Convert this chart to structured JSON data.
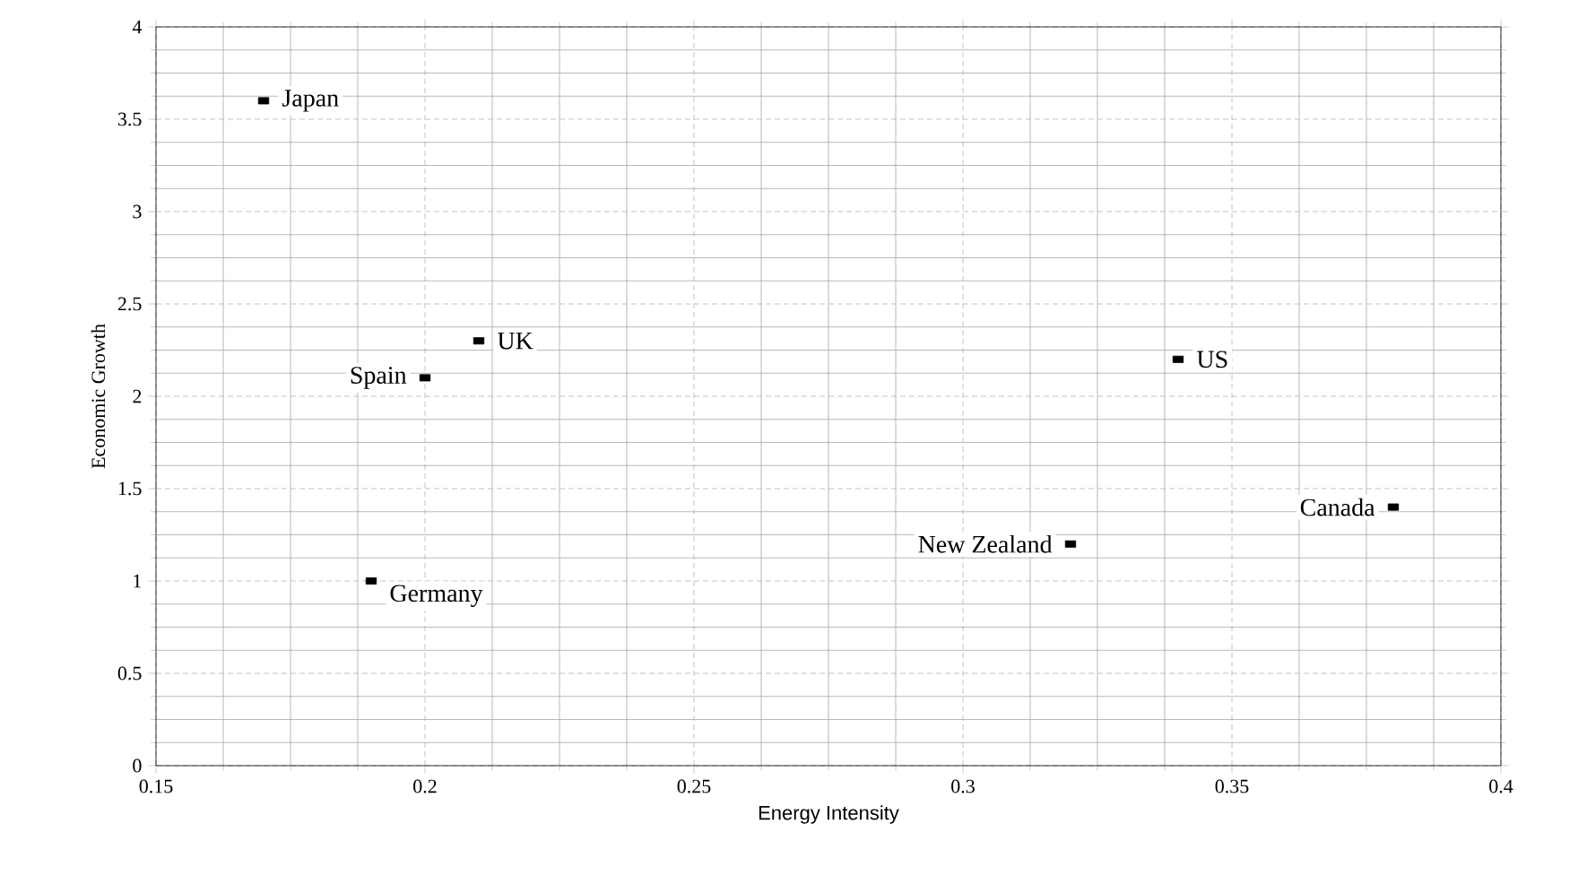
{
  "chart_data": {
    "type": "scatter",
    "xlabel": "Energy Intensity",
    "ylabel": "Economic Growth",
    "x": [
      0.17,
      0.21,
      0.2,
      0.34,
      0.38,
      0.32,
      0.19
    ],
    "values": [
      3.6,
      2.3,
      2.1,
      2.2,
      1.4,
      1.2,
      1.0
    ],
    "color": "#000000",
    "marker": "square",
    "annotations": [
      {
        "text": "Japan",
        "x": 0.17,
        "y": 3.6
      },
      {
        "text": "UK",
        "x": 0.21,
        "y": 2.3
      },
      {
        "text": "Spain",
        "x": 0.2,
        "y": 2.1
      },
      {
        "text": "US",
        "x": 0.34,
        "y": 2.2
      },
      {
        "text": "Canada",
        "x": 0.38,
        "y": 1.4
      },
      {
        "text": "New Zealand",
        "x": 0.32,
        "y": 1.2
      },
      {
        "text": "Germany",
        "x": 0.19,
        "y": 1.0
      }
    ],
    "xlim": [
      0.15,
      0.4
    ],
    "xticks": [
      0.15,
      0.2,
      0.25,
      0.3,
      0.35,
      0.4
    ],
    "ylim": [
      0,
      4
    ],
    "yticks": [
      0,
      0.5,
      1,
      1.5,
      2,
      2.5,
      3,
      3.5,
      4
    ],
    "grid": true
  }
}
